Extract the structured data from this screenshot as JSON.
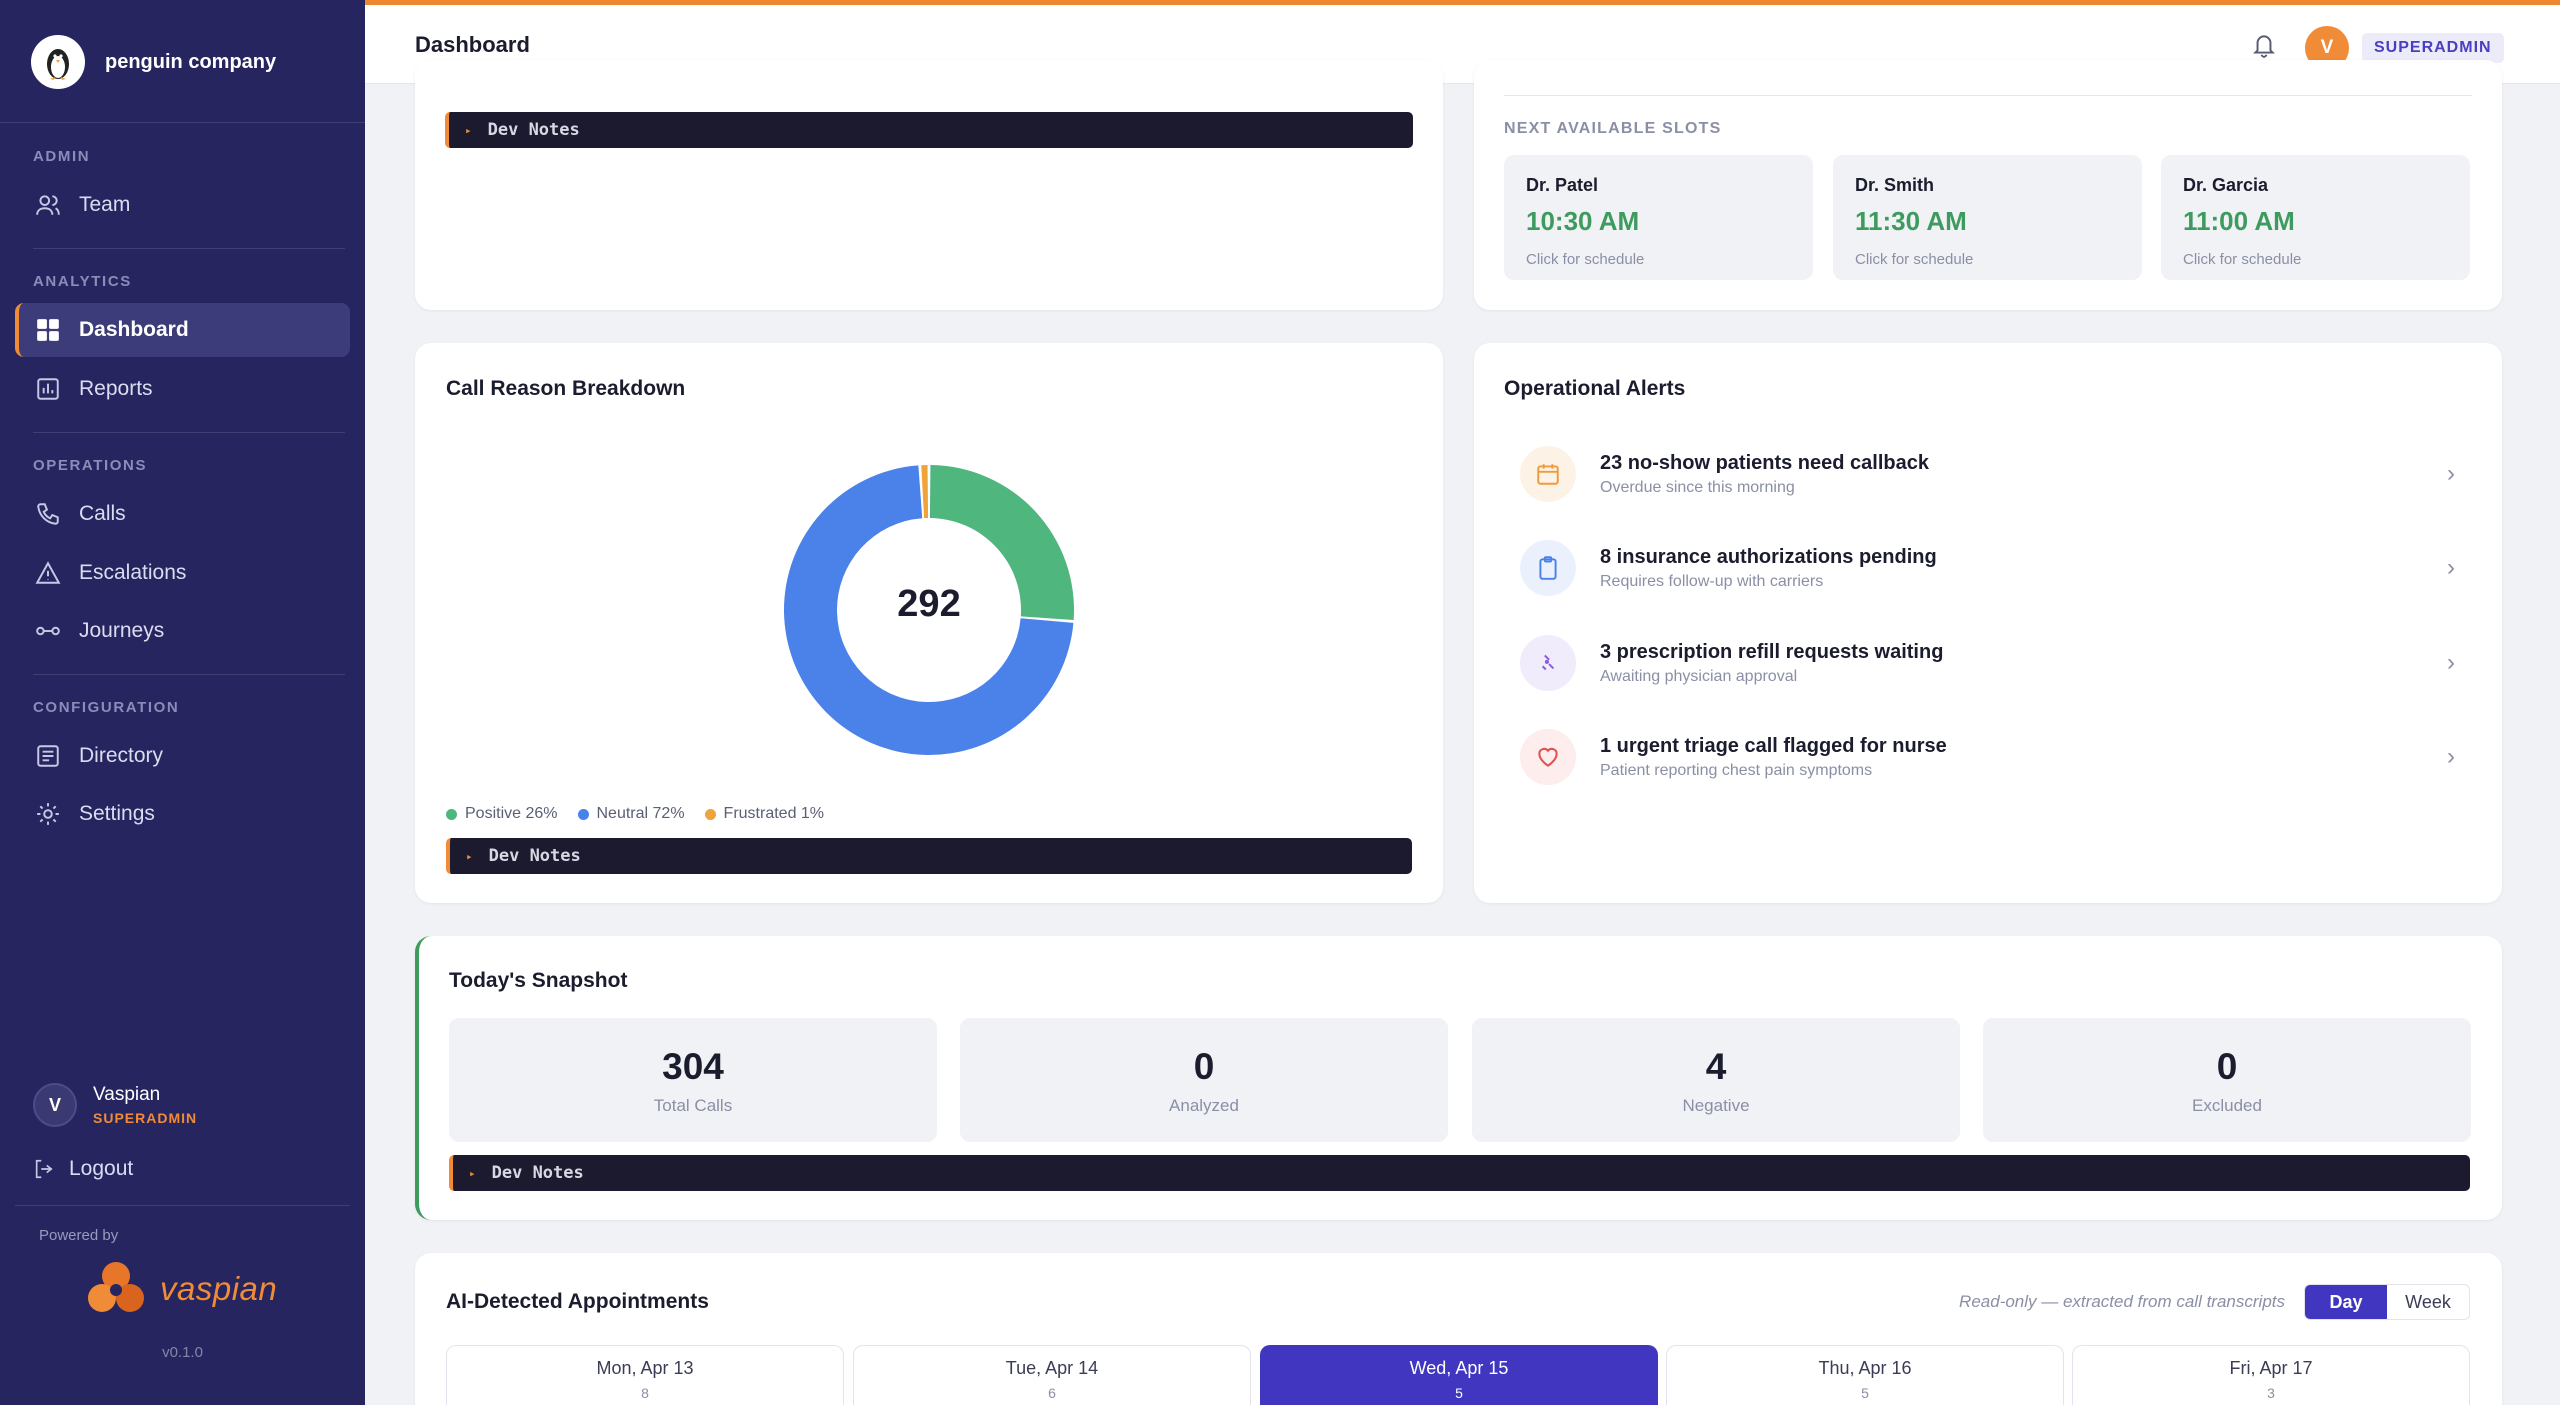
{
  "sidebar": {
    "company": "penguin company",
    "sections": {
      "admin": "ADMIN",
      "analytics": "ANALYTICS",
      "operations": "OPERATIONS",
      "configuration": "CONFIGURATION"
    },
    "items": {
      "team": "Team",
      "dashboard": "Dashboard",
      "reports": "Reports",
      "calls": "Calls",
      "escalations": "Escalations",
      "journeys": "Journeys",
      "directory": "Directory",
      "settings": "Settings"
    },
    "user": {
      "initial": "V",
      "name": "Vaspian",
      "role": "SUPERADMIN"
    },
    "logout": "Logout",
    "powered_by": "Powered by",
    "vendor": "vaspian",
    "version": "v0.1.0"
  },
  "topbar": {
    "title": "Dashboard",
    "avatar_initial": "V",
    "role": "SUPERADMIN"
  },
  "dev_notes_label": "Dev Notes",
  "slots": {
    "heading": "NEXT AVAILABLE SLOTS",
    "items": [
      {
        "doctor": "Dr. Patel",
        "time": "10:30 AM",
        "hint": "Click for schedule"
      },
      {
        "doctor": "Dr. Smith",
        "time": "11:30 AM",
        "hint": "Click for schedule"
      },
      {
        "doctor": "Dr. Garcia",
        "time": "11:00 AM",
        "hint": "Click for schedule"
      }
    ]
  },
  "call_reason": {
    "title": "Call Reason Breakdown",
    "total": "292"
  },
  "chart_data": {
    "type": "pie",
    "title": "Call Reason Breakdown",
    "center_label": "292",
    "categories": [
      "Positive 26%",
      "Neutral 72%",
      "Frustrated 1%"
    ],
    "values": [
      26,
      72,
      1
    ],
    "colors": [
      "#4fb67d",
      "#4a82ea",
      "#f0a23b"
    ]
  },
  "alerts": {
    "title": "Operational Alerts",
    "items": [
      {
        "title": "23 no-show patients need callback",
        "sub": "Overdue since this morning"
      },
      {
        "title": "8 insurance authorizations pending",
        "sub": "Requires follow-up with carriers"
      },
      {
        "title": "3 prescription refill requests waiting",
        "sub": "Awaiting physician approval"
      },
      {
        "title": "1 urgent triage call flagged for nurse",
        "sub": "Patient reporting chest pain symptoms"
      }
    ]
  },
  "snapshot": {
    "title": "Today's Snapshot",
    "stats": [
      {
        "value": "304",
        "label": "Total Calls"
      },
      {
        "value": "0",
        "label": "Analyzed"
      },
      {
        "value": "4",
        "label": "Negative"
      },
      {
        "value": "0",
        "label": "Excluded"
      }
    ]
  },
  "appointments": {
    "title": "AI-Detected Appointments",
    "note": "Read-only — extracted from call transcripts",
    "toggle": {
      "day": "Day",
      "week": "Week"
    },
    "days": [
      {
        "label": "Mon, Apr 13",
        "count": "8"
      },
      {
        "label": "Tue, Apr 14",
        "count": "6"
      },
      {
        "label": "Wed, Apr 15",
        "count": "5"
      },
      {
        "label": "Thu, Apr 16",
        "count": "5"
      },
      {
        "label": "Fri, Apr 17",
        "count": "3"
      }
    ]
  },
  "colors": {
    "sidebar": "#26255f",
    "accent": "#f08b38",
    "primary": "#4136bf",
    "success": "#3d9b5e"
  }
}
